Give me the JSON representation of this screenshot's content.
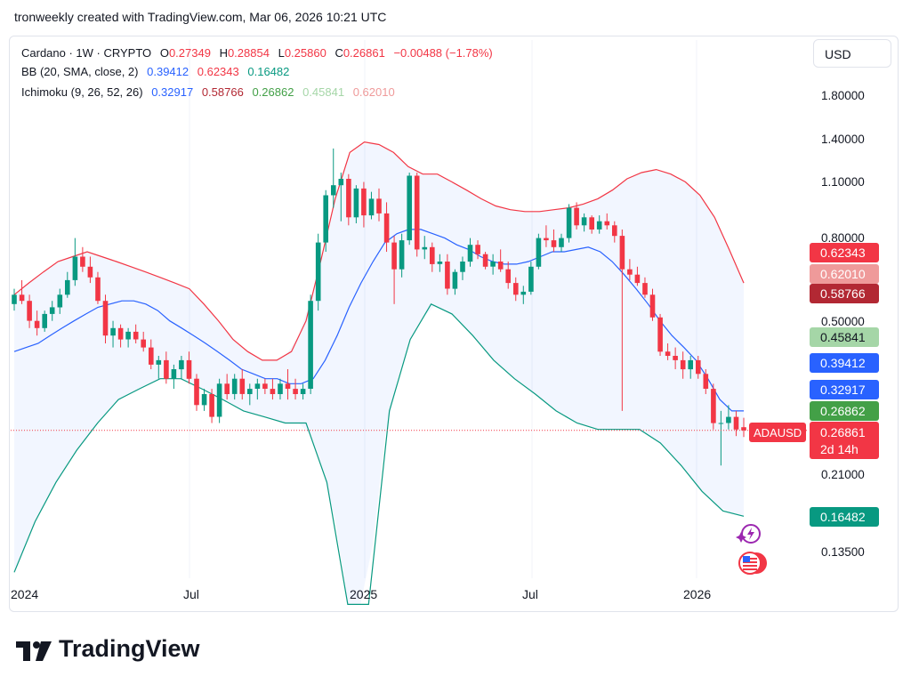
{
  "caption": "tronweekly created with TradingView.com, Mar 06, 2026 10:21 UTC",
  "legend": {
    "symbol": "Cardano · 1W · CRYPTO",
    "open_label": "O",
    "open": "0.27349",
    "high_label": "H",
    "high": "0.28854",
    "low_label": "L",
    "low": "0.25860",
    "close_label": "C",
    "close": "0.26861",
    "change": "−0.00488 (−1.78%)",
    "bb_label": "BB (20, SMA, close, 2)",
    "bb_basis": "0.39412",
    "bb_upper": "0.62343",
    "bb_lower": "0.16482",
    "ichimoku_label": "Ichimoku (9, 26, 52, 26)",
    "ich_conv": "0.32917",
    "ich_base": "0.58766",
    "ich_lag": "0.26862",
    "ich_lead1": "0.45841",
    "ich_lead2": "0.62010"
  },
  "currency_button": "USD",
  "price_ticks": [
    "1.80000",
    "1.40000",
    "1.10000",
    "0.80000",
    "0.50000",
    "0.21000",
    "0.13500"
  ],
  "time_ticks": [
    "2024",
    "Jul",
    "2025",
    "Jul",
    "2026"
  ],
  "tags": {
    "bb_upper": "0.62343",
    "lead2": "0.62010",
    "base": "0.58766",
    "lead1": "0.45841",
    "basis": "0.39412",
    "conv": "0.32917",
    "lag": "0.26862",
    "bb_lower": "0.16482"
  },
  "current": {
    "symbol": "ADAUSD",
    "price": "0.26861",
    "countdown": "2d 14h"
  },
  "logo_text": "TradingView",
  "colors": {
    "up": "#089981",
    "down": "#f23645",
    "bb_band": "#2962ff",
    "bb_edge": "#f23645"
  },
  "chart_data": {
    "type": "candlestick",
    "title": "Cardano · 1W · CRYPTO",
    "symbol": "ADAUSD",
    "scale": "log",
    "ylim": [
      0.1,
      2.2
    ],
    "x_range": [
      "2023-12",
      "2026-03"
    ],
    "series": [
      {
        "name": "ADAUSD",
        "candles": [
          [
            0.55,
            0.6,
            0.53,
            0.58
          ],
          [
            0.58,
            0.63,
            0.55,
            0.56
          ],
          [
            0.56,
            0.58,
            0.48,
            0.5
          ],
          [
            0.5,
            0.53,
            0.46,
            0.48
          ],
          [
            0.48,
            0.53,
            0.47,
            0.52
          ],
          [
            0.52,
            0.56,
            0.5,
            0.54
          ],
          [
            0.54,
            0.6,
            0.52,
            0.58
          ],
          [
            0.58,
            0.66,
            0.57,
            0.63
          ],
          [
            0.63,
            0.8,
            0.61,
            0.72
          ],
          [
            0.72,
            0.76,
            0.66,
            0.68
          ],
          [
            0.68,
            0.72,
            0.62,
            0.64
          ],
          [
            0.64,
            0.66,
            0.55,
            0.56
          ],
          [
            0.56,
            0.58,
            0.44,
            0.46
          ],
          [
            0.46,
            0.5,
            0.43,
            0.48
          ],
          [
            0.48,
            0.49,
            0.43,
            0.45
          ],
          [
            0.45,
            0.48,
            0.43,
            0.47
          ],
          [
            0.47,
            0.49,
            0.44,
            0.45
          ],
          [
            0.45,
            0.47,
            0.42,
            0.43
          ],
          [
            0.43,
            0.45,
            0.38,
            0.39
          ],
          [
            0.39,
            0.41,
            0.36,
            0.4
          ],
          [
            0.4,
            0.42,
            0.35,
            0.36
          ],
          [
            0.36,
            0.39,
            0.34,
            0.38
          ],
          [
            0.38,
            0.41,
            0.36,
            0.4
          ],
          [
            0.4,
            0.42,
            0.35,
            0.36
          ],
          [
            0.36,
            0.37,
            0.3,
            0.31
          ],
          [
            0.31,
            0.34,
            0.3,
            0.33
          ],
          [
            0.33,
            0.34,
            0.28,
            0.29
          ],
          [
            0.29,
            0.36,
            0.28,
            0.35
          ],
          [
            0.35,
            0.37,
            0.32,
            0.33
          ],
          [
            0.33,
            0.37,
            0.32,
            0.36
          ],
          [
            0.36,
            0.38,
            0.32,
            0.33
          ],
          [
            0.33,
            0.35,
            0.31,
            0.34
          ],
          [
            0.34,
            0.36,
            0.32,
            0.35
          ],
          [
            0.35,
            0.36,
            0.33,
            0.34
          ],
          [
            0.34,
            0.36,
            0.32,
            0.33
          ],
          [
            0.33,
            0.36,
            0.32,
            0.35
          ],
          [
            0.35,
            0.38,
            0.32,
            0.34
          ],
          [
            0.34,
            0.36,
            0.32,
            0.33
          ],
          [
            0.33,
            0.35,
            0.32,
            0.34
          ],
          [
            0.34,
            0.58,
            0.33,
            0.56
          ],
          [
            0.56,
            0.82,
            0.53,
            0.78
          ],
          [
            0.78,
            1.05,
            0.74,
            1.02
          ],
          [
            1.02,
            1.33,
            0.95,
            1.08
          ],
          [
            1.08,
            1.16,
            0.88,
            1.12
          ],
          [
            1.12,
            1.15,
            0.86,
            0.9
          ],
          [
            0.9,
            1.08,
            0.87,
            1.06
          ],
          [
            1.06,
            1.1,
            0.85,
            0.91
          ],
          [
            0.91,
            1.04,
            0.89,
            1.0
          ],
          [
            1.0,
            1.06,
            0.88,
            0.92
          ],
          [
            0.92,
            0.98,
            0.74,
            0.78
          ],
          [
            0.78,
            0.81,
            0.55,
            0.67
          ],
          [
            0.67,
            0.82,
            0.64,
            0.79
          ],
          [
            0.79,
            1.16,
            0.77,
            1.14
          ],
          [
            1.14,
            1.16,
            0.72,
            0.75
          ],
          [
            0.75,
            0.81,
            0.71,
            0.76
          ],
          [
            0.76,
            0.78,
            0.66,
            0.69
          ],
          [
            0.69,
            0.73,
            0.66,
            0.7
          ],
          [
            0.7,
            0.73,
            0.58,
            0.6
          ],
          [
            0.6,
            0.67,
            0.58,
            0.66
          ],
          [
            0.66,
            0.72,
            0.63,
            0.7
          ],
          [
            0.7,
            0.8,
            0.68,
            0.77
          ],
          [
            0.77,
            0.79,
            0.71,
            0.73
          ],
          [
            0.73,
            0.74,
            0.67,
            0.68
          ],
          [
            0.68,
            0.73,
            0.65,
            0.7
          ],
          [
            0.7,
            0.75,
            0.66,
            0.67
          ],
          [
            0.67,
            0.7,
            0.6,
            0.62
          ],
          [
            0.62,
            0.64,
            0.56,
            0.58
          ],
          [
            0.58,
            0.61,
            0.55,
            0.59
          ],
          [
            0.59,
            0.7,
            0.58,
            0.68
          ],
          [
            0.68,
            0.82,
            0.67,
            0.8
          ],
          [
            0.8,
            0.86,
            0.76,
            0.79
          ],
          [
            0.79,
            0.84,
            0.74,
            0.76
          ],
          [
            0.76,
            0.82,
            0.74,
            0.8
          ],
          [
            0.8,
            0.97,
            0.78,
            0.95
          ],
          [
            0.95,
            0.98,
            0.84,
            0.86
          ],
          [
            0.86,
            0.92,
            0.83,
            0.9
          ],
          [
            0.9,
            0.91,
            0.82,
            0.84
          ],
          [
            0.84,
            0.91,
            0.82,
            0.88
          ],
          [
            0.88,
            0.92,
            0.84,
            0.86
          ],
          [
            0.86,
            0.88,
            0.78,
            0.81
          ],
          [
            0.81,
            0.84,
            0.3,
            0.67
          ],
          [
            0.67,
            0.71,
            0.63,
            0.65
          ],
          [
            0.65,
            0.68,
            0.61,
            0.62
          ],
          [
            0.62,
            0.64,
            0.57,
            0.58
          ],
          [
            0.58,
            0.6,
            0.5,
            0.51
          ],
          [
            0.51,
            0.52,
            0.41,
            0.42
          ],
          [
            0.42,
            0.44,
            0.4,
            0.41
          ],
          [
            0.41,
            0.43,
            0.38,
            0.4
          ],
          [
            0.4,
            0.42,
            0.36,
            0.38
          ],
          [
            0.38,
            0.41,
            0.36,
            0.4
          ],
          [
            0.4,
            0.41,
            0.36,
            0.37
          ],
          [
            0.37,
            0.38,
            0.33,
            0.34
          ],
          [
            0.34,
            0.35,
            0.27,
            0.28
          ],
          [
            0.28,
            0.3,
            0.22,
            0.28
          ],
          [
            0.28,
            0.31,
            0.27,
            0.29
          ],
          [
            0.29,
            0.3,
            0.26,
            0.27
          ],
          [
            0.27349,
            0.28854,
            0.2586,
            0.26861
          ]
        ]
      }
    ],
    "indicators": [
      {
        "name": "BB (20, SMA, close, 2)",
        "basis": 0.39412,
        "upper": 0.62343,
        "lower": 0.16482
      },
      {
        "name": "Ichimoku (9, 26, 52, 26)",
        "conversion": 0.32917,
        "base": 0.58766,
        "lagging": 0.26862,
        "lead1": 0.45841,
        "lead2": 0.6201
      }
    ],
    "bb_basis": [
      0.42,
      0.43,
      0.44,
      0.46,
      0.48,
      0.5,
      0.52,
      0.54,
      0.55,
      0.56,
      0.56,
      0.55,
      0.53,
      0.5,
      0.48,
      0.46,
      0.44,
      0.42,
      0.4,
      0.38,
      0.37,
      0.36,
      0.36,
      0.35,
      0.35,
      0.36,
      0.4,
      0.46,
      0.54,
      0.62,
      0.7,
      0.78,
      0.82,
      0.84,
      0.84,
      0.82,
      0.8,
      0.77,
      0.75,
      0.72,
      0.7,
      0.69,
      0.69,
      0.7,
      0.72,
      0.74,
      0.74,
      0.75,
      0.76,
      0.74,
      0.7,
      0.65,
      0.6,
      0.55,
      0.5,
      0.46,
      0.43,
      0.4,
      0.36,
      0.32,
      0.3,
      0.3
    ],
    "bb_upper": [
      0.58,
      0.62,
      0.66,
      0.7,
      0.72,
      0.74,
      0.72,
      0.7,
      0.68,
      0.66,
      0.64,
      0.62,
      0.6,
      0.55,
      0.5,
      0.45,
      0.42,
      0.4,
      0.4,
      0.42,
      0.5,
      0.7,
      1.0,
      1.3,
      1.38,
      1.36,
      1.3,
      1.2,
      1.15,
      1.15,
      1.1,
      1.05,
      1.0,
      0.96,
      0.94,
      0.93,
      0.93,
      0.94,
      0.95,
      0.97,
      1.0,
      1.05,
      1.12,
      1.16,
      1.18,
      1.15,
      1.1,
      1.02,
      0.9,
      0.75,
      0.62
    ],
    "bb_lower": [
      0.12,
      0.16,
      0.2,
      0.24,
      0.28,
      0.32,
      0.34,
      0.36,
      0.36,
      0.34,
      0.32,
      0.3,
      0.29,
      0.28,
      0.28,
      0.2,
      0.1,
      0.1,
      0.3,
      0.45,
      0.55,
      0.52,
      0.46,
      0.4,
      0.36,
      0.33,
      0.3,
      0.28,
      0.27,
      0.27,
      0.27,
      0.25,
      0.22,
      0.19,
      0.17,
      0.165
    ]
  }
}
